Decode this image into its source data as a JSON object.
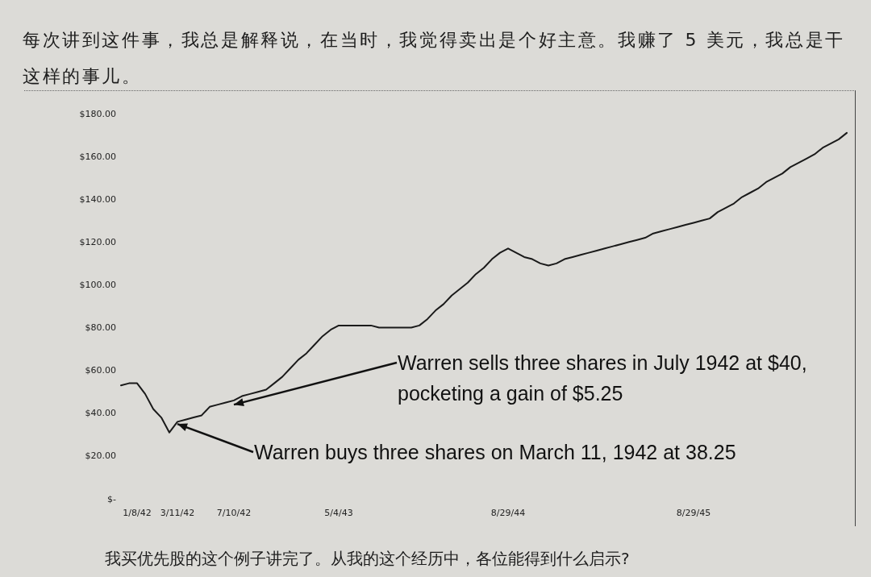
{
  "chart_data": {
    "type": "line",
    "categories": [
      null,
      null,
      "1/8/42",
      null,
      null,
      null,
      null,
      "3/11/42",
      null,
      null,
      null,
      null,
      null,
      null,
      "7/10/42",
      null,
      null,
      null,
      null,
      null,
      null,
      null,
      null,
      null,
      null,
      null,
      null,
      "5/4/43",
      null,
      null,
      null,
      null,
      null,
      null,
      null,
      null,
      null,
      null,
      null,
      null,
      null,
      null,
      null,
      null,
      null,
      null,
      null,
      null,
      "8/29/44",
      null,
      null,
      null,
      null,
      null,
      null,
      null,
      null,
      null,
      null,
      null,
      null,
      null,
      null,
      null,
      null,
      null,
      null,
      null,
      null,
      null,
      null,
      "8/29/45",
      null,
      null,
      null,
      null,
      null,
      null,
      null,
      null,
      null,
      null,
      null,
      null,
      null,
      null,
      null,
      null,
      null,
      null,
      null
    ],
    "values": [
      53,
      54,
      54,
      49,
      42,
      38,
      31,
      36,
      37,
      38,
      39,
      43,
      44,
      45,
      46,
      48,
      49,
      50,
      51,
      54,
      57,
      61,
      65,
      68,
      72,
      76,
      79,
      81,
      81,
      81,
      81,
      81,
      80,
      80,
      80,
      80,
      80,
      81,
      84,
      88,
      91,
      95,
      98,
      101,
      105,
      108,
      112,
      115,
      117,
      115,
      113,
      112,
      110,
      109,
      110,
      112,
      113,
      114,
      115,
      116,
      117,
      118,
      119,
      120,
      121,
      122,
      124,
      125,
      126,
      127,
      128,
      129,
      130,
      131,
      134,
      136,
      138,
      141,
      143,
      145,
      148,
      150,
      152,
      155,
      157,
      159,
      161,
      164,
      166,
      168,
      171
    ],
    "color": "#1a1a1a",
    "ylim": [
      0,
      180
    ],
    "yticks": [
      {
        "value": 0,
        "label": "$-"
      },
      {
        "value": 20,
        "label": "$20.00"
      },
      {
        "value": 40,
        "label": "$40.00"
      },
      {
        "value": 60,
        "label": "$60.00"
      },
      {
        "value": 80,
        "label": "$80.00"
      },
      {
        "value": 100,
        "label": "$100.00"
      },
      {
        "value": 120,
        "label": "$120.00"
      },
      {
        "value": 140,
        "label": "$140.00"
      },
      {
        "value": 160,
        "label": "$160.00"
      },
      {
        "value": 180,
        "label": "$180.00"
      }
    ],
    "annotations": [
      "每次讲到这件事，我总是解释说，在当时，我觉得卖出是个好主意。我赚了 5 美元，我总是干这样的事儿。",
      {
        "text": "Warren sells three shares in July 1942 at $40, pocketing a gain of $5.25",
        "x": "7/10/42",
        "y": 44
      },
      {
        "text": "Warren buys three shares on March 11, 1942 at 38.25",
        "x": "3/11/42",
        "y": 35
      },
      "我买优先股的这个例子讲完了。从我的这个经历中，各位能得到什么启示?"
    ]
  }
}
